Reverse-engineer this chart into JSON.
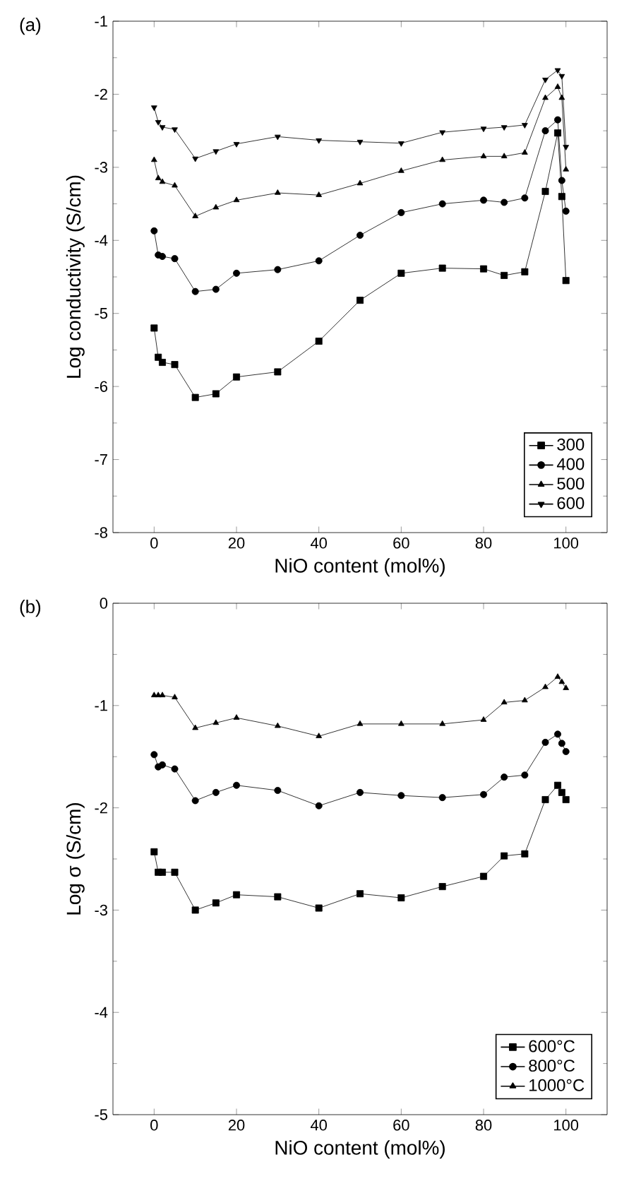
{
  "chart_data": [
    {
      "type": "line",
      "title": "(a)",
      "xlabel": "NiO content (mol%)",
      "ylabel": "Log conductivity (S/cm)",
      "x": [
        0,
        1,
        2,
        5,
        10,
        15,
        20,
        30,
        40,
        50,
        60,
        70,
        80,
        85,
        90,
        95,
        98,
        99,
        100
      ],
      "xlim": [
        -10,
        110
      ],
      "xticks": [
        0,
        20,
        40,
        60,
        80,
        100
      ],
      "ylim": [
        -8,
        -1
      ],
      "yticks": [
        -8,
        -7,
        -6,
        -5,
        -4,
        -3,
        -2,
        -1
      ],
      "legend": "bottom right",
      "line_style": "solid",
      "series": [
        {
          "name": "300",
          "color": "#000000",
          "marker": "square",
          "values": [
            -5.2,
            -5.6,
            -5.67,
            -5.7,
            -6.15,
            -6.1,
            -5.87,
            -5.8,
            -5.38,
            -4.82,
            -4.45,
            -4.38,
            -4.39,
            -4.48,
            -4.43,
            -3.33,
            -2.53,
            -3.4,
            -4.55
          ]
        },
        {
          "name": "400",
          "color": "#000000",
          "marker": "circle",
          "values": [
            -3.87,
            -4.2,
            -4.22,
            -4.25,
            -4.7,
            -4.67,
            -4.45,
            -4.4,
            -4.28,
            -3.93,
            -3.62,
            -3.5,
            -3.45,
            -3.48,
            -3.42,
            -2.5,
            -2.35,
            -3.18,
            -3.6
          ]
        },
        {
          "name": "500",
          "color": "#000000",
          "marker": "triangle",
          "values": [
            -2.9,
            -3.15,
            -3.2,
            -3.25,
            -3.67,
            -3.55,
            -3.45,
            -3.35,
            -3.38,
            -3.22,
            -3.05,
            -2.9,
            -2.85,
            -2.85,
            -2.8,
            -2.05,
            -1.9,
            -2.05,
            -3.03
          ]
        },
        {
          "name": "600",
          "color": "#000000",
          "marker": "triangle-down",
          "values": [
            -2.18,
            -2.38,
            -2.45,
            -2.48,
            -2.88,
            -2.78,
            -2.68,
            -2.58,
            -2.63,
            -2.65,
            -2.67,
            -2.52,
            -2.47,
            -2.45,
            -2.42,
            -1.8,
            -1.67,
            -1.75,
            -2.72
          ]
        }
      ]
    },
    {
      "type": "line",
      "title": "(b)",
      "xlabel": "NiO content (mol%)",
      "ylabel": "Log σ (S/cm)",
      "x": [
        0,
        1,
        2,
        5,
        10,
        15,
        20,
        30,
        40,
        50,
        60,
        70,
        80,
        85,
        90,
        95,
        98,
        99,
        100
      ],
      "xlim": [
        -10,
        110
      ],
      "xticks": [
        0,
        20,
        40,
        60,
        80,
        100
      ],
      "ylim": [
        -5,
        0
      ],
      "yticks": [
        -5,
        -4,
        -3,
        -2,
        -1,
        0
      ],
      "legend": "bottom right",
      "line_style": "solid",
      "series": [
        {
          "name": "600°C",
          "color": "#000000",
          "marker": "square",
          "values": [
            -2.43,
            -2.63,
            -2.63,
            -2.63,
            -3.0,
            -2.93,
            -2.85,
            -2.87,
            -2.98,
            -2.84,
            -2.88,
            -2.77,
            -2.67,
            -2.47,
            -2.45,
            -1.92,
            -1.78,
            -1.85,
            -1.92
          ]
        },
        {
          "name": "800°C",
          "color": "#000000",
          "marker": "circle",
          "values": [
            -1.48,
            -1.6,
            -1.58,
            -1.62,
            -1.93,
            -1.85,
            -1.78,
            -1.83,
            -1.98,
            -1.85,
            -1.88,
            -1.9,
            -1.87,
            -1.7,
            -1.68,
            -1.36,
            -1.28,
            -1.37,
            -1.45
          ]
        },
        {
          "name": "1000°C",
          "color": "#000000",
          "marker": "triangle",
          "values": [
            -0.9,
            -0.9,
            -0.9,
            -0.92,
            -1.22,
            -1.17,
            -1.12,
            -1.2,
            -1.3,
            -1.18,
            -1.18,
            -1.18,
            -1.14,
            -0.97,
            -0.95,
            -0.82,
            -0.72,
            -0.77,
            -0.83
          ]
        }
      ]
    }
  ]
}
